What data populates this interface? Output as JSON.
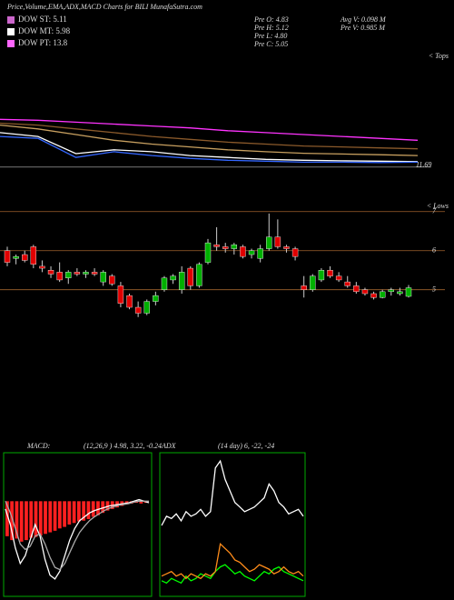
{
  "header": {
    "title": "Price,Volume,EMA,ADX,MACD Charts for BILI MunafaSutra.com",
    "legend": [
      {
        "text": "DOW ST: 5.11",
        "color": "#cc66cc"
      },
      {
        "text": "DOW MT: 5.98",
        "color": "#ffffff"
      },
      {
        "text": "DOW PT: 13.8",
        "color": "#ff66ff"
      }
    ],
    "stats": [
      "Pre  O: 4.83",
      "Pre  H: 5.12",
      "Pre  L: 4.80",
      "Pre  C: 5.05",
      "Avg V: 0.098 M",
      "Pre  V: 0.985 M"
    ],
    "tops_label": "< Tops",
    "lows_label": "< Lows"
  },
  "chart_data": [
    {
      "type": "line",
      "ylim": [
        11.3,
        14.5
      ],
      "yticks": [
        11.69
      ],
      "series": [
        {
          "color": "#ff33ff",
          "values": [
            14.2,
            14.15,
            14.05,
            13.95,
            13.85,
            13.75,
            13.6,
            13.5,
            13.4,
            13.3,
            13.2,
            13.1
          ]
        },
        {
          "color": "#8b5a2b",
          "values": [
            14.0,
            13.9,
            13.7,
            13.5,
            13.3,
            13.15,
            13.0,
            12.9,
            12.8,
            12.75,
            12.7,
            12.65
          ]
        },
        {
          "color": "#c8a060",
          "values": [
            13.9,
            13.7,
            13.4,
            13.1,
            12.9,
            12.75,
            12.6,
            12.5,
            12.42,
            12.38,
            12.34,
            12.3
          ]
        },
        {
          "color": "#ffffff",
          "values": [
            13.5,
            13.3,
            12.4,
            12.6,
            12.5,
            12.3,
            12.2,
            12.1,
            12.05,
            12.02,
            12.0,
            11.98
          ]
        },
        {
          "color": "#3366ff",
          "values": [
            13.3,
            13.2,
            12.2,
            12.5,
            12.3,
            12.15,
            12.05,
            12.0,
            11.95,
            11.95,
            11.93,
            11.95
          ]
        }
      ]
    },
    {
      "type": "candlestick",
      "ylim": [
        1.2,
        7.25
      ],
      "yticks": [
        5,
        6,
        7
      ],
      "up_color": "#00b000",
      "down_color": "#e00000",
      "open": [
        6.0,
        5.8,
        5.9,
        6.1,
        5.6,
        5.5,
        5.45,
        5.3,
        5.45,
        5.4,
        5.45,
        5.2,
        5.35,
        5.1,
        4.85,
        4.55,
        4.4,
        4.7,
        5.0,
        5.25,
        5.0,
        5.55,
        5.1,
        5.7,
        6.15,
        6.1,
        6.05,
        6.1,
        5.9,
        5.8,
        6.05,
        6.35,
        6.1,
        6.05,
        5.1,
        5.0,
        5.25,
        5.5,
        5.35,
        5.2,
        5.1,
        5.0,
        4.9,
        4.8,
        4.95,
        4.9,
        4.83
      ],
      "high": [
        6.1,
        5.9,
        6.0,
        6.15,
        5.75,
        5.6,
        5.7,
        5.5,
        5.55,
        5.5,
        5.55,
        5.5,
        5.4,
        5.2,
        4.9,
        4.7,
        4.75,
        4.95,
        5.35,
        5.4,
        5.6,
        5.6,
        5.7,
        6.3,
        6.6,
        6.2,
        6.2,
        6.15,
        6.05,
        6.15,
        6.95,
        6.8,
        6.15,
        6.1,
        5.35,
        5.4,
        5.55,
        5.6,
        5.45,
        5.35,
        5.2,
        5.05,
        4.95,
        5.0,
        5.05,
        5.05,
        5.12
      ],
      "low": [
        5.6,
        5.65,
        5.7,
        5.55,
        5.45,
        5.3,
        5.2,
        5.15,
        5.35,
        5.3,
        5.35,
        5.1,
        5.1,
        4.55,
        4.5,
        4.3,
        4.35,
        4.6,
        4.95,
        5.15,
        4.9,
        5.0,
        5.05,
        5.65,
        6.0,
        5.95,
        5.9,
        5.8,
        5.8,
        5.7,
        6.0,
        6.05,
        5.95,
        5.75,
        4.8,
        4.95,
        5.2,
        5.3,
        5.2,
        5.05,
        4.9,
        4.85,
        4.75,
        4.78,
        4.85,
        4.85,
        4.8
      ],
      "close": [
        5.7,
        5.85,
        5.75,
        5.65,
        5.55,
        5.4,
        5.25,
        5.45,
        5.4,
        5.45,
        5.4,
        5.45,
        5.15,
        4.65,
        4.55,
        4.4,
        4.7,
        4.85,
        5.3,
        5.35,
        5.45,
        5.1,
        5.65,
        6.2,
        6.1,
        6.05,
        6.15,
        5.85,
        6.0,
        6.05,
        6.35,
        6.1,
        6.05,
        5.85,
        5.0,
        5.35,
        5.5,
        5.35,
        5.25,
        5.1,
        4.95,
        4.9,
        4.8,
        4.95,
        5.0,
        4.95,
        5.05
      ]
    },
    {
      "type": "macd",
      "title": "MACD:",
      "subtitle": "(12,26,9 ) 4.98, 3.22, -0.24",
      "ylim": [
        -1.2,
        0.6
      ],
      "hist_color": "#ff2020",
      "hist": [
        -0.45,
        -0.5,
        -0.48,
        -0.52,
        -0.5,
        -0.47,
        -0.46,
        -0.44,
        -0.42,
        -0.4,
        -0.38,
        -0.35,
        -0.33,
        -0.3,
        -0.28,
        -0.26,
        -0.25,
        -0.23,
        -0.2,
        -0.18,
        -0.15,
        -0.12,
        -0.1,
        -0.08,
        -0.06,
        -0.04,
        -0.03,
        -0.02,
        -0.03,
        -0.02
      ],
      "series": [
        {
          "color": "#ffffff",
          "values": [
            -0.1,
            -0.3,
            -0.6,
            -0.8,
            -0.7,
            -0.5,
            -0.3,
            -0.45,
            -0.75,
            -0.95,
            -1.0,
            -0.9,
            -0.7,
            -0.5,
            -0.35,
            -0.25,
            -0.2,
            -0.15,
            -0.12,
            -0.1,
            -0.08,
            -0.06,
            -0.05,
            -0.04,
            -0.03,
            -0.02,
            0.0,
            0.02,
            0.0,
            -0.02
          ]
        },
        {
          "color": "#aaaaaa",
          "values": [
            0.0,
            -0.15,
            -0.35,
            -0.55,
            -0.62,
            -0.58,
            -0.45,
            -0.42,
            -0.55,
            -0.72,
            -0.85,
            -0.88,
            -0.8,
            -0.66,
            -0.52,
            -0.4,
            -0.32,
            -0.25,
            -0.2,
            -0.16,
            -0.12,
            -0.09,
            -0.07,
            -0.05,
            -0.04,
            -0.03,
            -0.01,
            0.0,
            0.0,
            0.0
          ]
        }
      ]
    },
    {
      "type": "adx",
      "title": "ADX",
      "subtitle": "(14 day) 6, -22, -24",
      "ylim": [
        0,
        60
      ],
      "series": [
        {
          "color": "#ffffff",
          "values": [
            30,
            34,
            33,
            35,
            32,
            36,
            34,
            35,
            37,
            34,
            36,
            55,
            58,
            50,
            45,
            40,
            38,
            36,
            37,
            38,
            40,
            42,
            48,
            45,
            40,
            38,
            35,
            36,
            37,
            34
          ]
        },
        {
          "color": "#00ff00",
          "values": [
            6,
            5,
            7,
            6,
            5,
            8,
            6,
            7,
            9,
            8,
            7,
            10,
            12,
            13,
            11,
            9,
            10,
            8,
            7,
            6,
            8,
            10,
            9,
            11,
            12,
            10,
            9,
            8,
            7,
            6
          ]
        },
        {
          "color": "#ff8c1a",
          "values": [
            8,
            9,
            10,
            8,
            9,
            7,
            9,
            8,
            7,
            9,
            8,
            10,
            22,
            20,
            18,
            15,
            14,
            12,
            10,
            11,
            13,
            12,
            11,
            9,
            10,
            12,
            10,
            9,
            10,
            8
          ]
        }
      ]
    }
  ]
}
